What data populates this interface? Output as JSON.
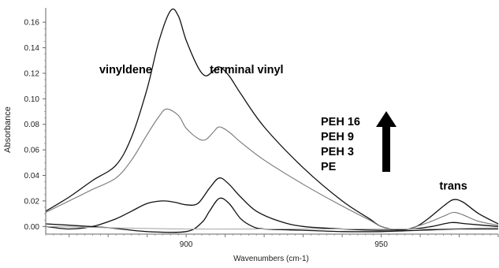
{
  "chart_data": {
    "type": "line",
    "xlabel": "Wavenumbers (cm-1)",
    "ylabel": "Absorbance",
    "xlim": [
      864,
      980
    ],
    "ylim": [
      -0.006,
      0.17
    ],
    "x_ticks": [
      900,
      950
    ],
    "y_ticks": [
      0.0,
      0.02,
      0.04,
      0.06,
      0.08,
      0.1,
      0.12,
      0.14,
      0.16
    ],
    "y_tick_labels": [
      "0.00",
      "0.02",
      "0.04",
      "0.06",
      "0.08",
      "0.10",
      "0.12",
      "0.14",
      "0.16"
    ],
    "grid": false,
    "series": [
      {
        "name": "PEH 16",
        "color": "#111111",
        "points": [
          [
            864,
            0.012
          ],
          [
            870,
            0.023
          ],
          [
            876,
            0.036
          ],
          [
            882,
            0.048
          ],
          [
            886,
            0.07
          ],
          [
            890,
            0.108
          ],
          [
            893,
            0.145
          ],
          [
            896,
            0.169
          ],
          [
            898,
            0.165
          ],
          [
            900,
            0.146
          ],
          [
            903,
            0.125
          ],
          [
            905,
            0.118
          ],
          [
            907,
            0.122
          ],
          [
            908.5,
            0.125
          ],
          [
            911,
            0.118
          ],
          [
            914,
            0.104
          ],
          [
            920,
            0.078
          ],
          [
            930,
            0.046
          ],
          [
            940,
            0.02
          ],
          [
            947,
            0.006
          ],
          [
            950,
            0.0
          ],
          [
            955,
            -0.003
          ],
          [
            959,
            0.0
          ],
          [
            962,
            0.006
          ],
          [
            966,
            0.016
          ],
          [
            968.5,
            0.021
          ],
          [
            971,
            0.019
          ],
          [
            975,
            0.01
          ],
          [
            980,
            0.002
          ]
        ]
      },
      {
        "name": "PEH 9",
        "color": "#777777",
        "points": [
          [
            864,
            0.011
          ],
          [
            870,
            0.02
          ],
          [
            876,
            0.029
          ],
          [
            882,
            0.038
          ],
          [
            886,
            0.052
          ],
          [
            890,
            0.072
          ],
          [
            893,
            0.086
          ],
          [
            895,
            0.092
          ],
          [
            898,
            0.087
          ],
          [
            900,
            0.077
          ],
          [
            903,
            0.069
          ],
          [
            905,
            0.068
          ],
          [
            907,
            0.074
          ],
          [
            908.5,
            0.078
          ],
          [
            911,
            0.074
          ],
          [
            914,
            0.066
          ],
          [
            920,
            0.052
          ],
          [
            930,
            0.033
          ],
          [
            940,
            0.016
          ],
          [
            947,
            0.005
          ],
          [
            950,
            0.0
          ],
          [
            955,
            -0.003
          ],
          [
            959,
            0.0
          ],
          [
            962,
            0.003
          ],
          [
            966,
            0.008
          ],
          [
            968.5,
            0.011
          ],
          [
            971,
            0.009
          ],
          [
            975,
            0.004
          ],
          [
            980,
            0.001
          ]
        ]
      },
      {
        "name": "PEH 3",
        "color": "#111111",
        "points": [
          [
            864,
            0.0
          ],
          [
            870,
            -0.002
          ],
          [
            876,
            0.0
          ],
          [
            882,
            0.006
          ],
          [
            886,
            0.012
          ],
          [
            890,
            0.018
          ],
          [
            894,
            0.02
          ],
          [
            897,
            0.019
          ],
          [
            900,
            0.017
          ],
          [
            903,
            0.018
          ],
          [
            906,
            0.03
          ],
          [
            908.5,
            0.038
          ],
          [
            911,
            0.033
          ],
          [
            914,
            0.023
          ],
          [
            918,
            0.012
          ],
          [
            924,
            0.004
          ],
          [
            930,
            0.0
          ],
          [
            940,
            -0.002
          ],
          [
            950,
            -0.003
          ],
          [
            958,
            -0.002
          ],
          [
            963,
            0.0
          ],
          [
            968,
            0.003
          ],
          [
            972,
            0.002
          ],
          [
            980,
            0.0
          ]
        ]
      },
      {
        "name": "PE",
        "color": "#111111",
        "points": [
          [
            864,
            0.002
          ],
          [
            870,
            0.001
          ],
          [
            880,
            -0.001
          ],
          [
            890,
            -0.004
          ],
          [
            900,
            -0.004
          ],
          [
            904,
            0.003
          ],
          [
            906,
            0.012
          ],
          [
            908.5,
            0.022
          ],
          [
            911,
            0.018
          ],
          [
            914,
            0.006
          ],
          [
            917,
            0.0
          ],
          [
            920,
            -0.002
          ],
          [
            930,
            -0.003
          ],
          [
            940,
            -0.004
          ],
          [
            950,
            -0.004
          ],
          [
            960,
            -0.003
          ],
          [
            970,
            -0.002
          ],
          [
            980,
            -0.002
          ]
        ]
      },
      {
        "name": "",
        "color": "#aaaaaa",
        "points": [
          [
            864,
            0.0
          ],
          [
            880,
            -0.001
          ],
          [
            900,
            -0.002
          ],
          [
            920,
            -0.002
          ],
          [
            940,
            -0.002
          ],
          [
            960,
            -0.002
          ],
          [
            980,
            -0.001
          ]
        ]
      }
    ],
    "annotations": [
      {
        "text": "vinyldene",
        "x": 884.5,
        "y": 0.12
      },
      {
        "text": "terminal vinyl",
        "x": 915.5,
        "y": 0.12
      },
      {
        "text": "trans",
        "x": 968.5,
        "y": 0.029
      }
    ],
    "legend": {
      "position": "center-right",
      "entries": [
        "PEH 16",
        "PEH 9",
        "PEH 3",
        "PE"
      ],
      "arrow": "up"
    }
  }
}
